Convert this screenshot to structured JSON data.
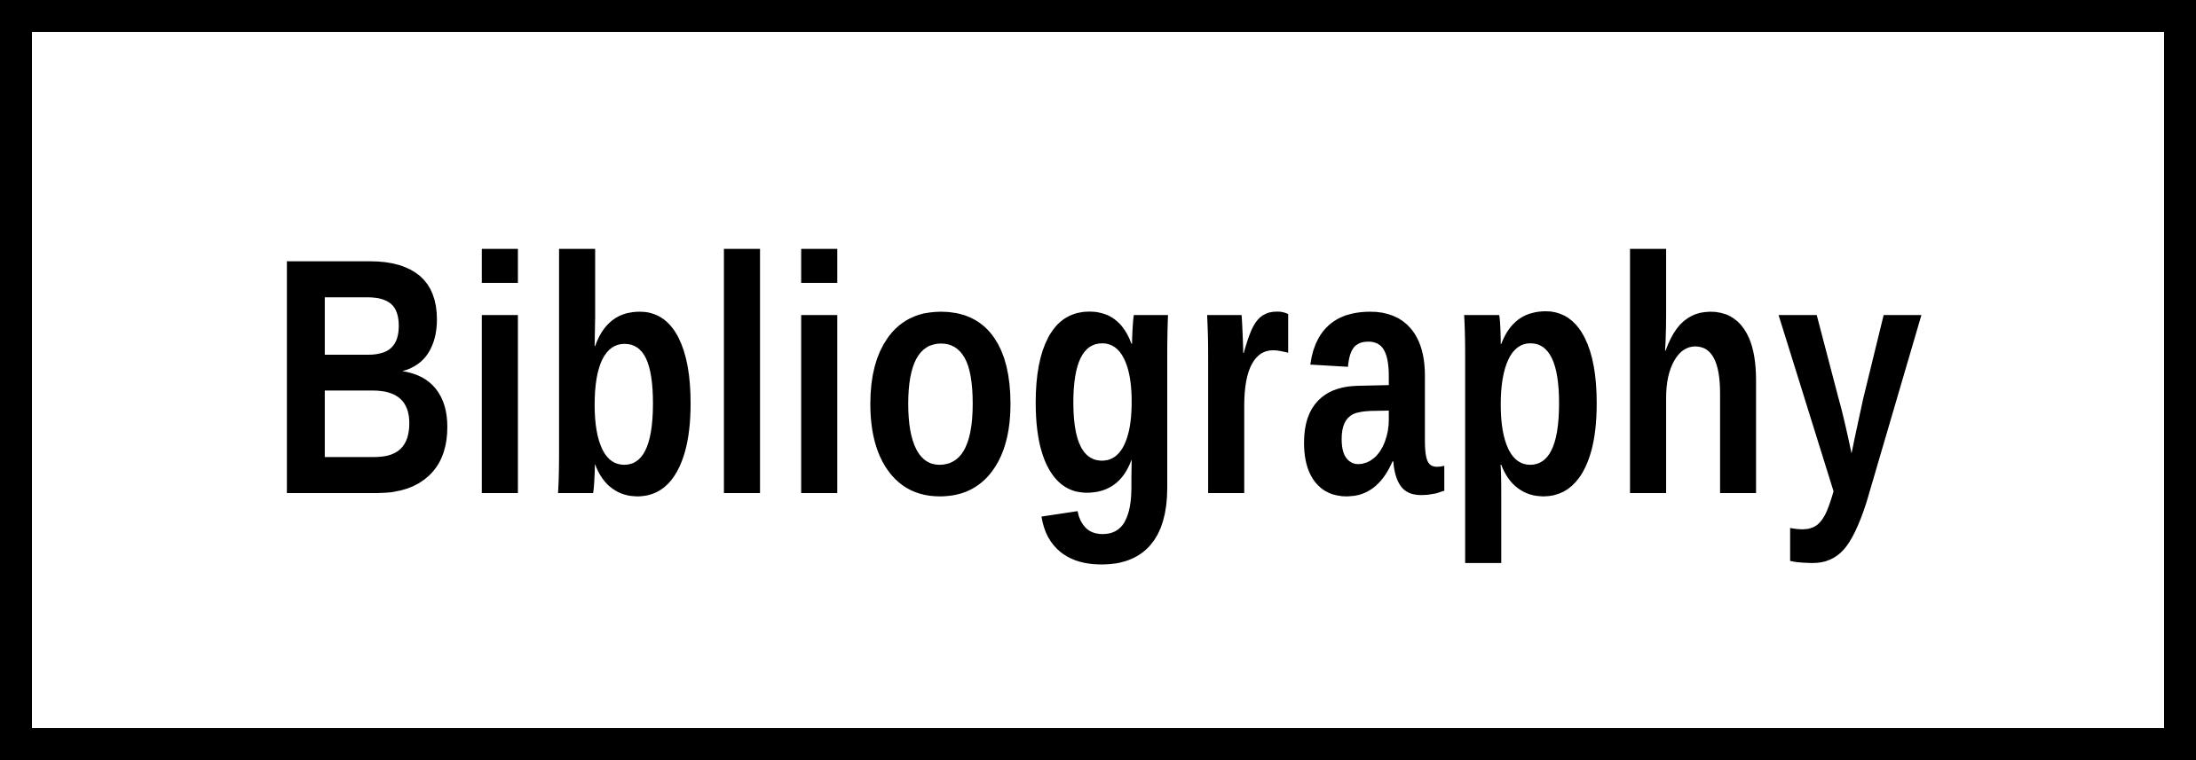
{
  "heading": {
    "text": "Bibliography"
  },
  "colors": {
    "border": "#000000",
    "background": "#ffffff",
    "text": "#000000"
  }
}
